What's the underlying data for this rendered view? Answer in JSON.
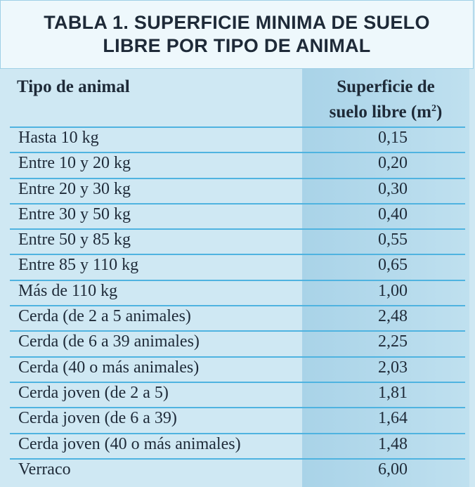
{
  "table": {
    "title_line1": "TABLA 1. SUPERFICIE MINIMA DE SUELO",
    "title_line2": "LIBRE POR TIPO DE ANIMAL",
    "header": {
      "col1": "Tipo de animal",
      "col2_line1": "Superficie de",
      "col2_line2_text": "suelo libre (m",
      "col2_superscript": "2",
      "col2_line2_close": ")"
    },
    "rows": [
      {
        "animal": "Hasta 10 kg",
        "area": "0,15"
      },
      {
        "animal": "Entre 10 y 20 kg",
        "area": "0,20"
      },
      {
        "animal": "Entre 20 y 30 kg",
        "area": "0,30"
      },
      {
        "animal": "Entre 30 y 50 kg",
        "area": "0,40"
      },
      {
        "animal": "Entre 50 y 85 kg",
        "area": "0,55"
      },
      {
        "animal": "Entre 85 y 110 kg",
        "area": "0,65"
      },
      {
        "animal": "Más de 110 kg",
        "area": "1,00"
      },
      {
        "animal": "Cerda (de 2 a 5 animales)",
        "area": "2,48"
      },
      {
        "animal": "Cerda (de 6 a 39 animales)",
        "area": "2,25"
      },
      {
        "animal": "Cerda (40 o más animales)",
        "area": "2,03"
      },
      {
        "animal": "Cerda joven (de 2 a 5)",
        "area": "1,81"
      },
      {
        "animal": "Cerda joven (de 6 a 39)",
        "area": "1,64"
      },
      {
        "animal": "Cerda joven (40 o más animales)",
        "area": "1,48"
      },
      {
        "animal": "Verraco",
        "area": "6,00"
      }
    ]
  },
  "colors": {
    "title_background": "#eef8fc",
    "table_background": "#cfe8f3",
    "highlight_column": "#a9d3e8",
    "row_rule": "#4fb3e0",
    "text": "#1e2a38"
  }
}
